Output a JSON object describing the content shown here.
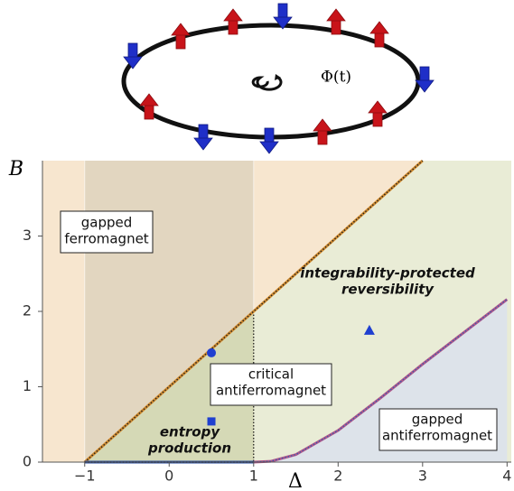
{
  "illustration_label": "Φ(t)",
  "chart_data": {
    "type": "phase-diagram",
    "x_label": "Δ",
    "y_label": "B",
    "xlim": [
      -1.5,
      4.05
    ],
    "ylim": [
      0,
      4
    ],
    "xticks": [
      {
        "value": -1,
        "label": "−1"
      },
      0,
      1,
      2,
      3,
      4
    ],
    "yticks": [
      0,
      1,
      2,
      3
    ],
    "region_colors": [
      "#f7e6cf",
      "#e2d6c0",
      "#e9ecd6",
      "#dde3ea",
      "#d5d9b6"
    ],
    "series": [
      {
        "color": "#d08a2e",
        "x": [
          -1,
          3
        ],
        "values": [
          0,
          4
        ]
      },
      {
        "color": "#b0588a",
        "x": [
          1,
          1.2,
          1.5,
          2,
          2.5,
          3,
          3.5,
          4
        ],
        "values": [
          0,
          0.01,
          0.1,
          0.42,
          0.85,
          1.3,
          1.73,
          2.16
        ]
      },
      {
        "color": "#2a4fa0",
        "x": [
          -1,
          1
        ],
        "values": [
          0,
          0
        ]
      }
    ],
    "markers": [
      {
        "shape": "circle",
        "x": 0.5,
        "y": 1.45,
        "color": "#1f3fd0"
      },
      {
        "shape": "square",
        "x": 0.5,
        "y": 0.54,
        "color": "#1f3fd0"
      },
      {
        "shape": "triangle",
        "x": 2.37,
        "y": 1.75,
        "color": "#1f3fd0"
      }
    ],
    "annotations": [
      [
        "gapped",
        "ferromagnet"
      ],
      [
        "integrability-protected",
        "reversibility"
      ],
      [
        "critical",
        "antiferromagnet"
      ],
      [
        "entropy",
        "production"
      ],
      [
        "gapped",
        "antiferromagnet"
      ]
    ]
  }
}
